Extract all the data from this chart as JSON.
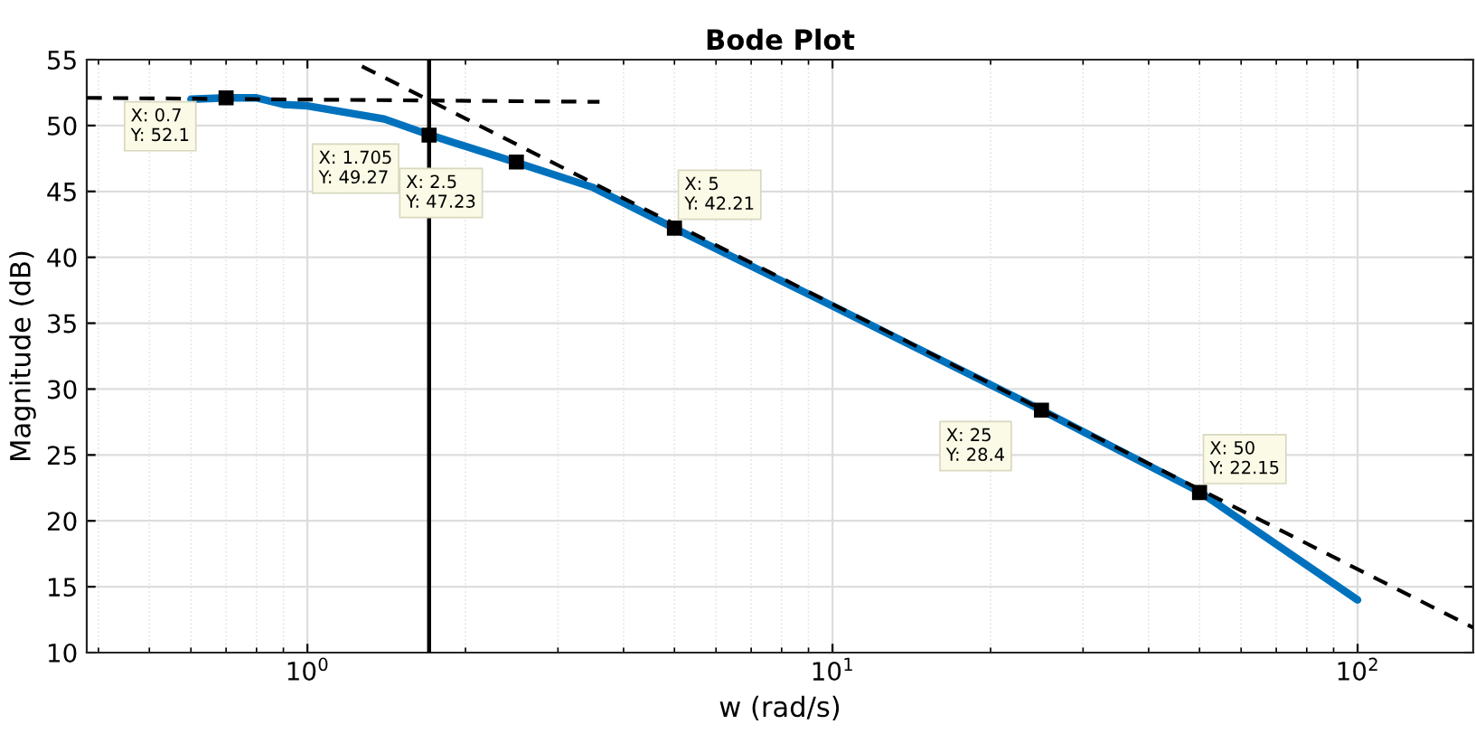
{
  "chart_data": {
    "type": "line",
    "title": "Bode Plot",
    "xlabel": "w (rad/s)",
    "ylabel": "Magnitude (dB)",
    "log": "x",
    "grid": true,
    "legend": false,
    "xlim": [
      0.38,
      166
    ],
    "ylim": [
      10,
      55
    ],
    "xticks": [
      {
        "value": 1,
        "label": "10$^{0}$"
      },
      {
        "value": 10,
        "label": "10$^{1}$"
      },
      {
        "value": 100,
        "label": "10$^{2}$"
      }
    ],
    "yticks": [
      10,
      15,
      20,
      25,
      30,
      35,
      40,
      45,
      50,
      55
    ],
    "series": [
      {
        "color": "#0072bd",
        "line_style": "solid",
        "x": [
          0.6,
          0.7,
          0.8,
          0.9,
          1.0,
          1.4,
          1.705,
          2.5,
          3.5,
          5,
          10,
          25,
          50,
          100
        ],
        "values": [
          52.0,
          52.1,
          52.1,
          51.6,
          51.5,
          50.5,
          49.3,
          47.2,
          45.3,
          42.2,
          36.3,
          28.4,
          22.2,
          14.0
        ]
      },
      {
        "color": "#000000",
        "line_style": "dashed",
        "x": [
          0.38,
          3.6
        ],
        "values": [
          52.1,
          51.8
        ]
      },
      {
        "color": "#000000",
        "line_style": "dashed",
        "x": [
          1.27,
          166
        ],
        "values": [
          54.5,
          11.9
        ]
      }
    ],
    "ref_lines": [
      {
        "axis": "x",
        "value": 1.705,
        "color": "#000000",
        "line_style": "solid"
      }
    ],
    "annotations": [
      {
        "text": "X: 0.7\nY: 52.1",
        "x": 0.7,
        "y": 52.1
      },
      {
        "text": "X: 1.705\nY: 49.27",
        "x": 1.705,
        "y": 49.27
      },
      {
        "text": "X: 2.5\nY: 47.23",
        "x": 2.5,
        "y": 47.23
      },
      {
        "text": "X: 5\nY: 42.21",
        "x": 5,
        "y": 42.21
      },
      {
        "text": "X: 25\nY: 28.4",
        "x": 25,
        "y": 28.4
      },
      {
        "text": "X: 50\nY: 22.15",
        "x": 50,
        "y": 22.15
      }
    ]
  }
}
